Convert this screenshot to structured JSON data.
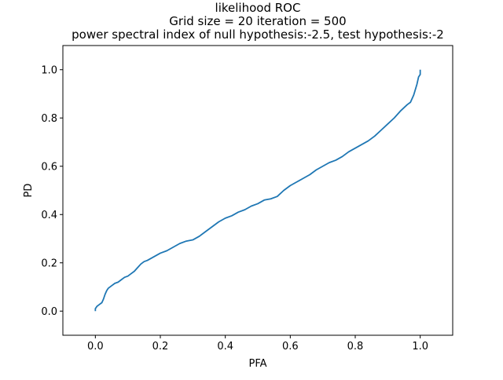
{
  "chart_data": {
    "type": "line",
    "title": [
      "likelihood ROC",
      "Grid size = 20 iteration = 500",
      "power spectral index of null hypothesis:-2.5, test hypothesis:-2"
    ],
    "xlabel": "PFA",
    "ylabel": "PD",
    "xlim": [
      -0.1,
      1.1
    ],
    "ylim": [
      -0.1,
      1.1
    ],
    "xticks": [
      0.0,
      0.2,
      0.4,
      0.6,
      0.8,
      1.0
    ],
    "yticks": [
      0.0,
      0.2,
      0.4,
      0.6,
      0.8,
      1.0
    ],
    "xtick_labels": [
      "0.0",
      "0.2",
      "0.4",
      "0.6",
      "0.8",
      "1.0"
    ],
    "ytick_labels": [
      "0.0",
      "0.2",
      "0.4",
      "0.6",
      "0.8",
      "1.0"
    ],
    "grid": false,
    "series": [
      {
        "name": "ROC",
        "color": "#1f77b4",
        "x": [
          0.0,
          0.0,
          0.005,
          0.01,
          0.02,
          0.025,
          0.03,
          0.035,
          0.04,
          0.05,
          0.06,
          0.07,
          0.08,
          0.09,
          0.1,
          0.11,
          0.12,
          0.13,
          0.14,
          0.15,
          0.16,
          0.18,
          0.2,
          0.22,
          0.24,
          0.26,
          0.28,
          0.3,
          0.32,
          0.34,
          0.36,
          0.38,
          0.4,
          0.42,
          0.44,
          0.46,
          0.48,
          0.5,
          0.52,
          0.54,
          0.56,
          0.58,
          0.6,
          0.62,
          0.64,
          0.66,
          0.68,
          0.7,
          0.72,
          0.74,
          0.76,
          0.78,
          0.8,
          0.82,
          0.84,
          0.86,
          0.88,
          0.9,
          0.92,
          0.94,
          0.96,
          0.97,
          0.98,
          0.99,
          0.995,
          1.0,
          1.0
        ],
        "y": [
          0.0,
          0.01,
          0.02,
          0.025,
          0.035,
          0.05,
          0.07,
          0.085,
          0.095,
          0.105,
          0.115,
          0.12,
          0.13,
          0.14,
          0.145,
          0.155,
          0.165,
          0.18,
          0.195,
          0.205,
          0.21,
          0.225,
          0.24,
          0.25,
          0.265,
          0.28,
          0.29,
          0.295,
          0.31,
          0.33,
          0.35,
          0.37,
          0.385,
          0.395,
          0.41,
          0.42,
          0.435,
          0.445,
          0.46,
          0.465,
          0.475,
          0.5,
          0.52,
          0.535,
          0.55,
          0.565,
          0.585,
          0.6,
          0.615,
          0.625,
          0.64,
          0.66,
          0.675,
          0.69,
          0.705,
          0.725,
          0.75,
          0.775,
          0.8,
          0.83,
          0.855,
          0.865,
          0.895,
          0.94,
          0.97,
          0.98,
          1.0
        ]
      }
    ]
  }
}
